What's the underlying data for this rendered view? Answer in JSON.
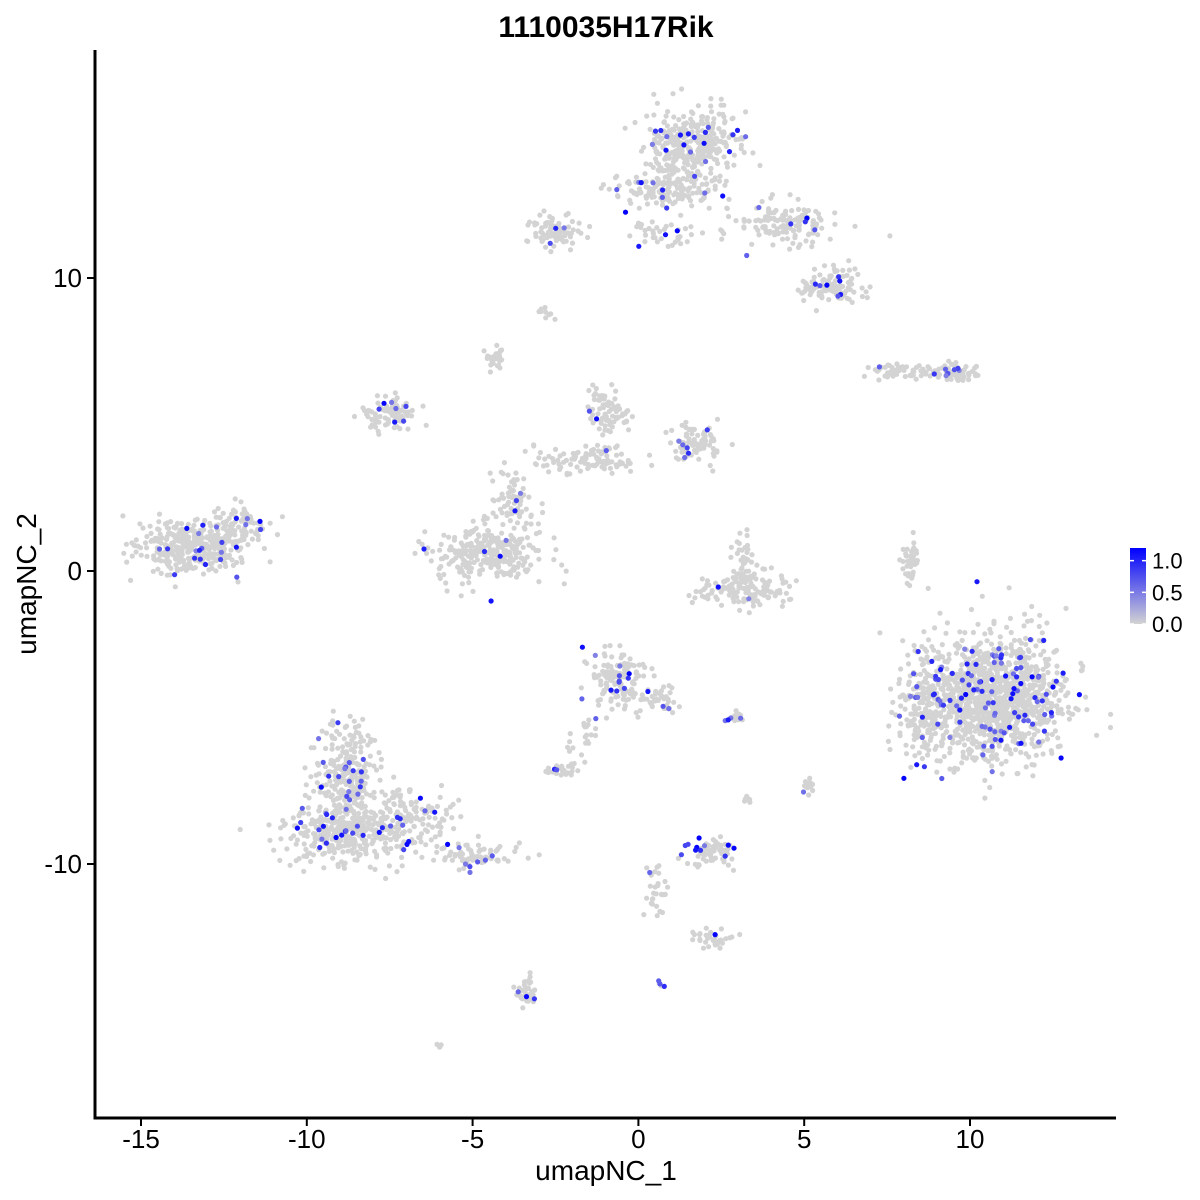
{
  "chart_data": {
    "type": "scatter",
    "title": "1110035H17Rik",
    "xlabel": "umapNC_1",
    "ylabel": "umapNC_2",
    "xlim": [
      -16.3,
      14.5
    ],
    "ylim": [
      -18.5,
      17.5
    ],
    "x_ticks": [
      -15,
      -10,
      -5,
      0,
      5,
      10
    ],
    "x_tick_labels": [
      "-15",
      "-10",
      "-5",
      "0",
      "5",
      "10"
    ],
    "y_ticks": [
      -10,
      0,
      10
    ],
    "y_tick_labels": [
      "-10",
      "0",
      "10"
    ],
    "grid": false,
    "legend_position": "right",
    "colorscale": {
      "low": "#d3d3d3",
      "high": "#0000ff",
      "min": 0.0,
      "max": 1.2
    },
    "legend_ticks": [
      1.0,
      0.5,
      0.0
    ],
    "legend_tick_labels": [
      "1.0",
      "0.5",
      "0.0"
    ],
    "clusters": [
      {
        "cx": -13.5,
        "cy": 0.9,
        "sx": 1.0,
        "sy": 0.6,
        "n": 380,
        "frac": 0.03
      },
      {
        "cx": -12.0,
        "cy": 1.6,
        "sx": 0.5,
        "sy": 0.4,
        "n": 60,
        "frac": 0.05
      },
      {
        "cx": -8.8,
        "cy": -7.0,
        "sx": 0.55,
        "sy": 1.0,
        "n": 280,
        "frac": 0.08
      },
      {
        "cx": -9.0,
        "cy": -8.9,
        "sx": 1.0,
        "sy": 0.6,
        "n": 340,
        "frac": 0.07
      },
      {
        "cx": -7.0,
        "cy": -8.5,
        "sx": 1.0,
        "sy": 0.7,
        "n": 160,
        "frac": 0.05
      },
      {
        "cx": -5.0,
        "cy": -9.7,
        "sx": 0.8,
        "sy": 0.3,
        "n": 80,
        "frac": 0.1
      },
      {
        "cx": -7.5,
        "cy": 5.4,
        "sx": 0.5,
        "sy": 0.4,
        "n": 90,
        "frac": 0.04
      },
      {
        "cx": -4.5,
        "cy": 0.6,
        "sx": 1.0,
        "sy": 0.6,
        "n": 300,
        "frac": 0.03
      },
      {
        "cx": -3.8,
        "cy": 2.5,
        "sx": 0.4,
        "sy": 0.6,
        "n": 70,
        "frac": 0.03
      },
      {
        "cx": -1.5,
        "cy": 3.8,
        "sx": 1.0,
        "sy": 0.3,
        "n": 100,
        "frac": 0.02
      },
      {
        "cx": -0.9,
        "cy": 5.4,
        "sx": 0.4,
        "sy": 0.5,
        "n": 80,
        "frac": 0.02
      },
      {
        "cx": 1.8,
        "cy": 4.4,
        "sx": 0.5,
        "sy": 0.4,
        "n": 90,
        "frac": 0.08
      },
      {
        "cx": -4.3,
        "cy": 7.3,
        "sx": 0.15,
        "sy": 0.3,
        "n": 30,
        "frac": 0.0
      },
      {
        "cx": 1.6,
        "cy": 14.6,
        "sx": 0.9,
        "sy": 0.7,
        "n": 350,
        "frac": 0.05
      },
      {
        "cx": 0.8,
        "cy": 13.0,
        "sx": 1.0,
        "sy": 0.4,
        "n": 150,
        "frac": 0.05
      },
      {
        "cx": 4.5,
        "cy": 11.8,
        "sx": 0.9,
        "sy": 0.5,
        "n": 140,
        "frac": 0.04
      },
      {
        "cx": 5.8,
        "cy": 9.7,
        "sx": 0.6,
        "sy": 0.4,
        "n": 110,
        "frac": 0.04
      },
      {
        "cx": -2.5,
        "cy": 11.6,
        "sx": 0.5,
        "sy": 0.4,
        "n": 80,
        "frac": 0.04
      },
      {
        "cx": 1.0,
        "cy": 11.5,
        "sx": 0.8,
        "sy": 0.3,
        "n": 40,
        "frac": 0.05
      },
      {
        "cx": 8.0,
        "cy": 6.8,
        "sx": 0.7,
        "sy": 0.15,
        "n": 60,
        "frac": 0.04
      },
      {
        "cx": 9.6,
        "cy": 6.8,
        "sx": 0.4,
        "sy": 0.2,
        "n": 60,
        "frac": 0.12
      },
      {
        "cx": 3.2,
        "cy": -0.6,
        "sx": 0.9,
        "sy": 0.35,
        "n": 140,
        "frac": 0.01
      },
      {
        "cx": 3.2,
        "cy": 0.6,
        "sx": 0.25,
        "sy": 0.5,
        "n": 30,
        "frac": 0.0
      },
      {
        "cx": 8.2,
        "cy": 0.3,
        "sx": 0.2,
        "sy": 0.6,
        "n": 35,
        "frac": 0.0
      },
      {
        "cx": 10.8,
        "cy": -4.3,
        "sx": 1.3,
        "sy": 1.3,
        "n": 1200,
        "frac": 0.07
      },
      {
        "cx": 8.6,
        "cy": -5.0,
        "sx": 0.5,
        "sy": 1.1,
        "n": 180,
        "frac": 0.02
      },
      {
        "cx": -0.6,
        "cy": -3.8,
        "sx": 0.5,
        "sy": 0.6,
        "n": 150,
        "frac": 0.08
      },
      {
        "cx": 0.6,
        "cy": -4.3,
        "sx": 0.4,
        "sy": 0.4,
        "n": 40,
        "frac": 0.03
      },
      {
        "cx": -2.3,
        "cy": -6.8,
        "sx": 0.3,
        "sy": 0.15,
        "n": 30,
        "frac": 0.08
      },
      {
        "cx": -1.7,
        "cy": -5.8,
        "sx": 0.3,
        "sy": 0.4,
        "n": 20,
        "frac": 0.0
      },
      {
        "cx": 2.2,
        "cy": -9.6,
        "sx": 0.5,
        "sy": 0.3,
        "n": 70,
        "frac": 0.14
      },
      {
        "cx": 2.2,
        "cy": -12.5,
        "sx": 0.4,
        "sy": 0.2,
        "n": 35,
        "frac": 0.06
      },
      {
        "cx": 0.5,
        "cy": -11.0,
        "sx": 0.2,
        "sy": 0.7,
        "n": 30,
        "frac": 0.07
      },
      {
        "cx": -3.4,
        "cy": -14.4,
        "sx": 0.2,
        "sy": 0.4,
        "n": 40,
        "frac": 0.1
      },
      {
        "cx": 2.9,
        "cy": -5.0,
        "sx": 0.2,
        "sy": 0.1,
        "n": 15,
        "frac": 0.25
      },
      {
        "cx": 5.1,
        "cy": -7.3,
        "sx": 0.1,
        "sy": 0.2,
        "n": 15,
        "frac": 0.1
      },
      {
        "cx": 3.3,
        "cy": -7.8,
        "sx": 0.1,
        "sy": 0.1,
        "n": 8,
        "frac": 0.0
      },
      {
        "cx": -6.0,
        "cy": -16.2,
        "sx": 0.1,
        "sy": 0.05,
        "n": 6,
        "frac": 0.0
      },
      {
        "cx": 0.7,
        "cy": -14.1,
        "sx": 0.08,
        "sy": 0.08,
        "n": 5,
        "frac": 0.5
      },
      {
        "cx": -2.8,
        "cy": 8.8,
        "sx": 0.15,
        "sy": 0.15,
        "n": 10,
        "frac": 0.1
      }
    ]
  }
}
